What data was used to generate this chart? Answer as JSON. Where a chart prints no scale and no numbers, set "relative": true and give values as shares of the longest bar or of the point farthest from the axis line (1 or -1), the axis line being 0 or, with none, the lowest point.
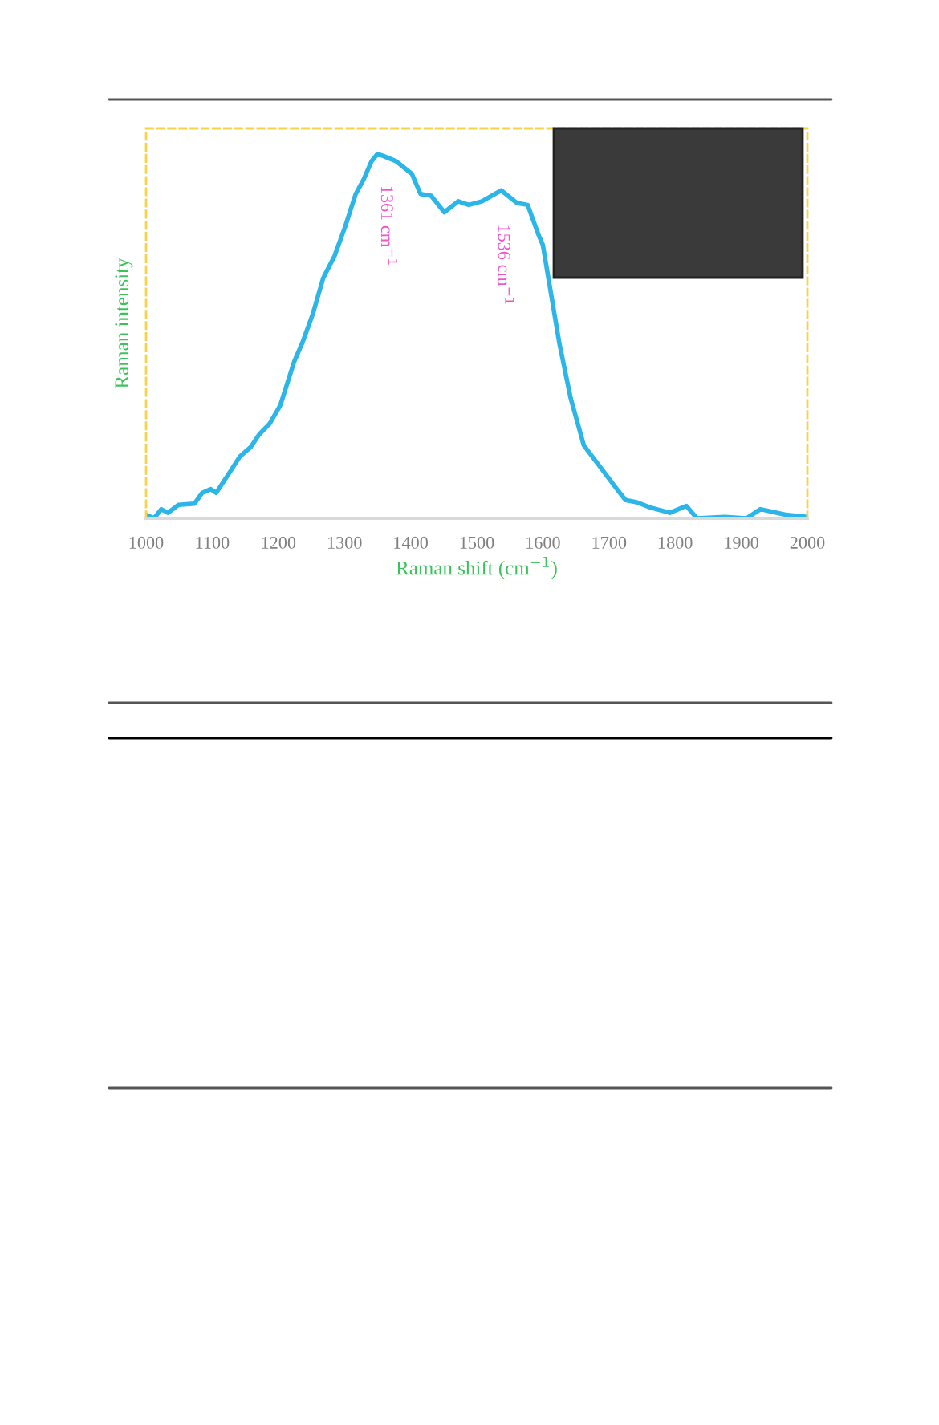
{
  "chart_data": {
    "type": "line",
    "xlabel": "Raman shift (cm$^{−1}$)",
    "ylabel": "Raman intensity",
    "relative": true,
    "xlim": [
      1000,
      2000
    ],
    "xticks": [
      1000,
      1100,
      1200,
      1300,
      1400,
      1500,
      1600,
      1700,
      1800,
      1900,
      2000
    ],
    "series": [
      {
        "color": "#2bb5e8",
        "x": [
          1000,
          1012,
          1023,
          1033,
          1049,
          1073,
          1085,
          1098,
          1106,
          1126,
          1142,
          1158,
          1171,
          1187,
          1203,
          1224,
          1236,
          1252,
          1268,
          1285,
          1301,
          1317,
          1329,
          1341,
          1350,
          1358,
          1378,
          1402,
          1415,
          1431,
          1451,
          1472,
          1488,
          1508,
          1537,
          1561,
          1577,
          1593,
          1600,
          1612,
          1625,
          1642,
          1662,
          1687,
          1712,
          1725,
          1742,
          1762,
          1792,
          1817,
          1833,
          1875,
          1908,
          1929,
          1967,
          2000
        ],
        "values": [
          0.01,
          0,
          0.025,
          0.015,
          0.037,
          0.04,
          0.07,
          0.08,
          0.07,
          0.125,
          0.17,
          0.195,
          0.23,
          0.26,
          0.31,
          0.43,
          0.48,
          0.56,
          0.66,
          0.72,
          0.8,
          0.89,
          0.93,
          0.98,
          1.0,
          0.995,
          0.98,
          0.945,
          0.89,
          0.885,
          0.84,
          0.87,
          0.86,
          0.87,
          0.9,
          0.865,
          0.86,
          0.78,
          0.75,
          0.62,
          0.48,
          0.33,
          0.2,
          0.14,
          0.08,
          0.05,
          0.044,
          0.03,
          0.015,
          0.034,
          0,
          0.004,
          0,
          0.025,
          0.01,
          0.004
        ]
      }
    ],
    "annotations": [
      "1361 cm$^{−1}$",
      "1536 cm$^{−1}$"
    ]
  }
}
